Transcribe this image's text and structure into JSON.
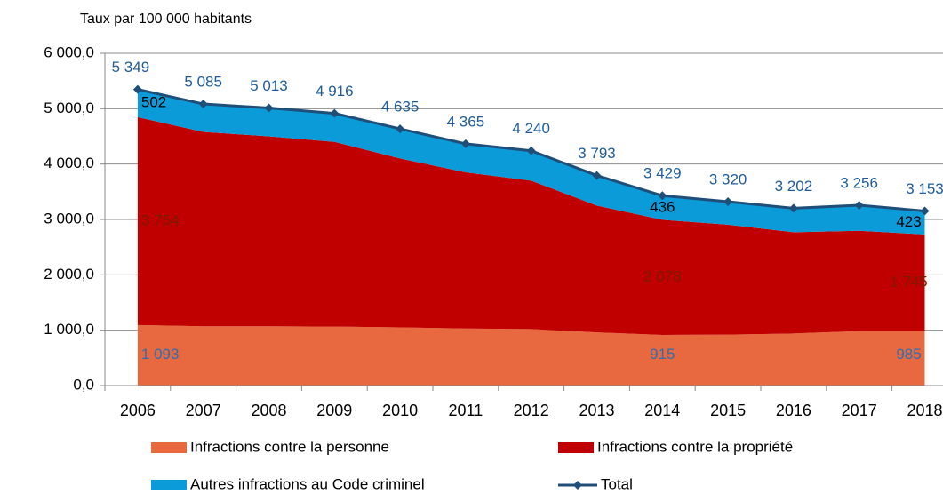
{
  "chart_data": {
    "type": "stacked_area",
    "y_axis_label": "Taux par 100 000 habitants",
    "categories": [
      "2006",
      "2007",
      "2008",
      "2009",
      "2010",
      "2011",
      "2012",
      "2013",
      "2014",
      "2015",
      "2016",
      "2017",
      "2018"
    ],
    "series": [
      {
        "name": "Infractions contre la personne",
        "color": "#e8693f",
        "label_color": "#2e6fb0",
        "values": [
          1093,
          1070,
          1070,
          1065,
          1050,
          1030,
          1020,
          960,
          915,
          920,
          940,
          985,
          985
        ],
        "value_labels": [
          "1 093",
          null,
          null,
          null,
          null,
          null,
          null,
          null,
          "915",
          null,
          null,
          null,
          "985"
        ]
      },
      {
        "name": "Infractions contre la propriété",
        "color": "#c00000",
        "label_color": "#7a1a00",
        "values": [
          3754,
          3510,
          3430,
          3335,
          3050,
          2820,
          2680,
          2290,
          2078,
          1985,
          1830,
          1810,
          1745
        ],
        "value_labels": [
          "3 754",
          null,
          null,
          null,
          null,
          null,
          null,
          null,
          "2 078",
          null,
          null,
          null,
          "1 745"
        ]
      },
      {
        "name": "Autres infractions au Code criminel",
        "color": "#0b9bd8",
        "label_color": "#000000",
        "values": [
          502,
          505,
          513,
          516,
          535,
          515,
          540,
          543,
          436,
          415,
          432,
          461,
          423
        ],
        "value_labels": [
          "502",
          null,
          null,
          null,
          null,
          null,
          null,
          null,
          "436",
          null,
          null,
          null,
          "423"
        ]
      }
    ],
    "total": {
      "name": "Total",
      "color": "#1f4e79",
      "label_color": "#1f5c99",
      "values": [
        5349,
        5085,
        5013,
        4916,
        4635,
        4365,
        4240,
        3793,
        3429,
        3320,
        3202,
        3256,
        3153
      ],
      "value_labels": [
        "5 349",
        "5 085",
        "5 013",
        "4 916",
        "4 635",
        "4 365",
        "4 240",
        "3 793",
        "3 429",
        "3 320",
        "3 202",
        "3 256",
        "3 153"
      ]
    },
    "ylim": [
      0,
      6000
    ],
    "yticks": [
      {
        "value": 0,
        "label": "0,0"
      },
      {
        "value": 1000,
        "label": "1 000,0"
      },
      {
        "value": 2000,
        "label": "2 000,0"
      },
      {
        "value": 3000,
        "label": "3 000,0"
      },
      {
        "value": 4000,
        "label": "4 000,0"
      },
      {
        "value": 5000,
        "label": "5 000,0"
      },
      {
        "value": 6000,
        "label": "6 000,0"
      }
    ],
    "grid": true,
    "legend": "bottom"
  }
}
